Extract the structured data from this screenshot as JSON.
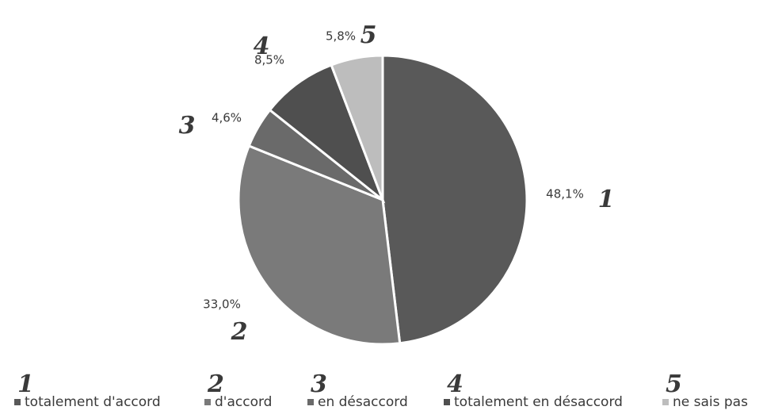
{
  "chart_data": {
    "type": "pie",
    "title": "",
    "categories": [
      "totalement d'accord",
      "d'accord",
      "en désaccord",
      "totalement en désaccord",
      "ne sais pas"
    ],
    "values": [
      48.1,
      33.0,
      4.6,
      8.5,
      5.8
    ],
    "value_labels": [
      "48,1%",
      "33,0%",
      "4,6%",
      "8,5%",
      "5,8%"
    ],
    "handwritten_numbers": [
      "1",
      "2",
      "3",
      "4",
      "5"
    ],
    "colors": [
      "#595959",
      "#7a7a7a",
      "#6a6a6a",
      "#4f4f4f",
      "#bdbdbd"
    ],
    "slice_border_color": "#ffffff",
    "start_angle": "12 o'clock",
    "direction": "clockwise",
    "legend_placement": "bottom"
  }
}
